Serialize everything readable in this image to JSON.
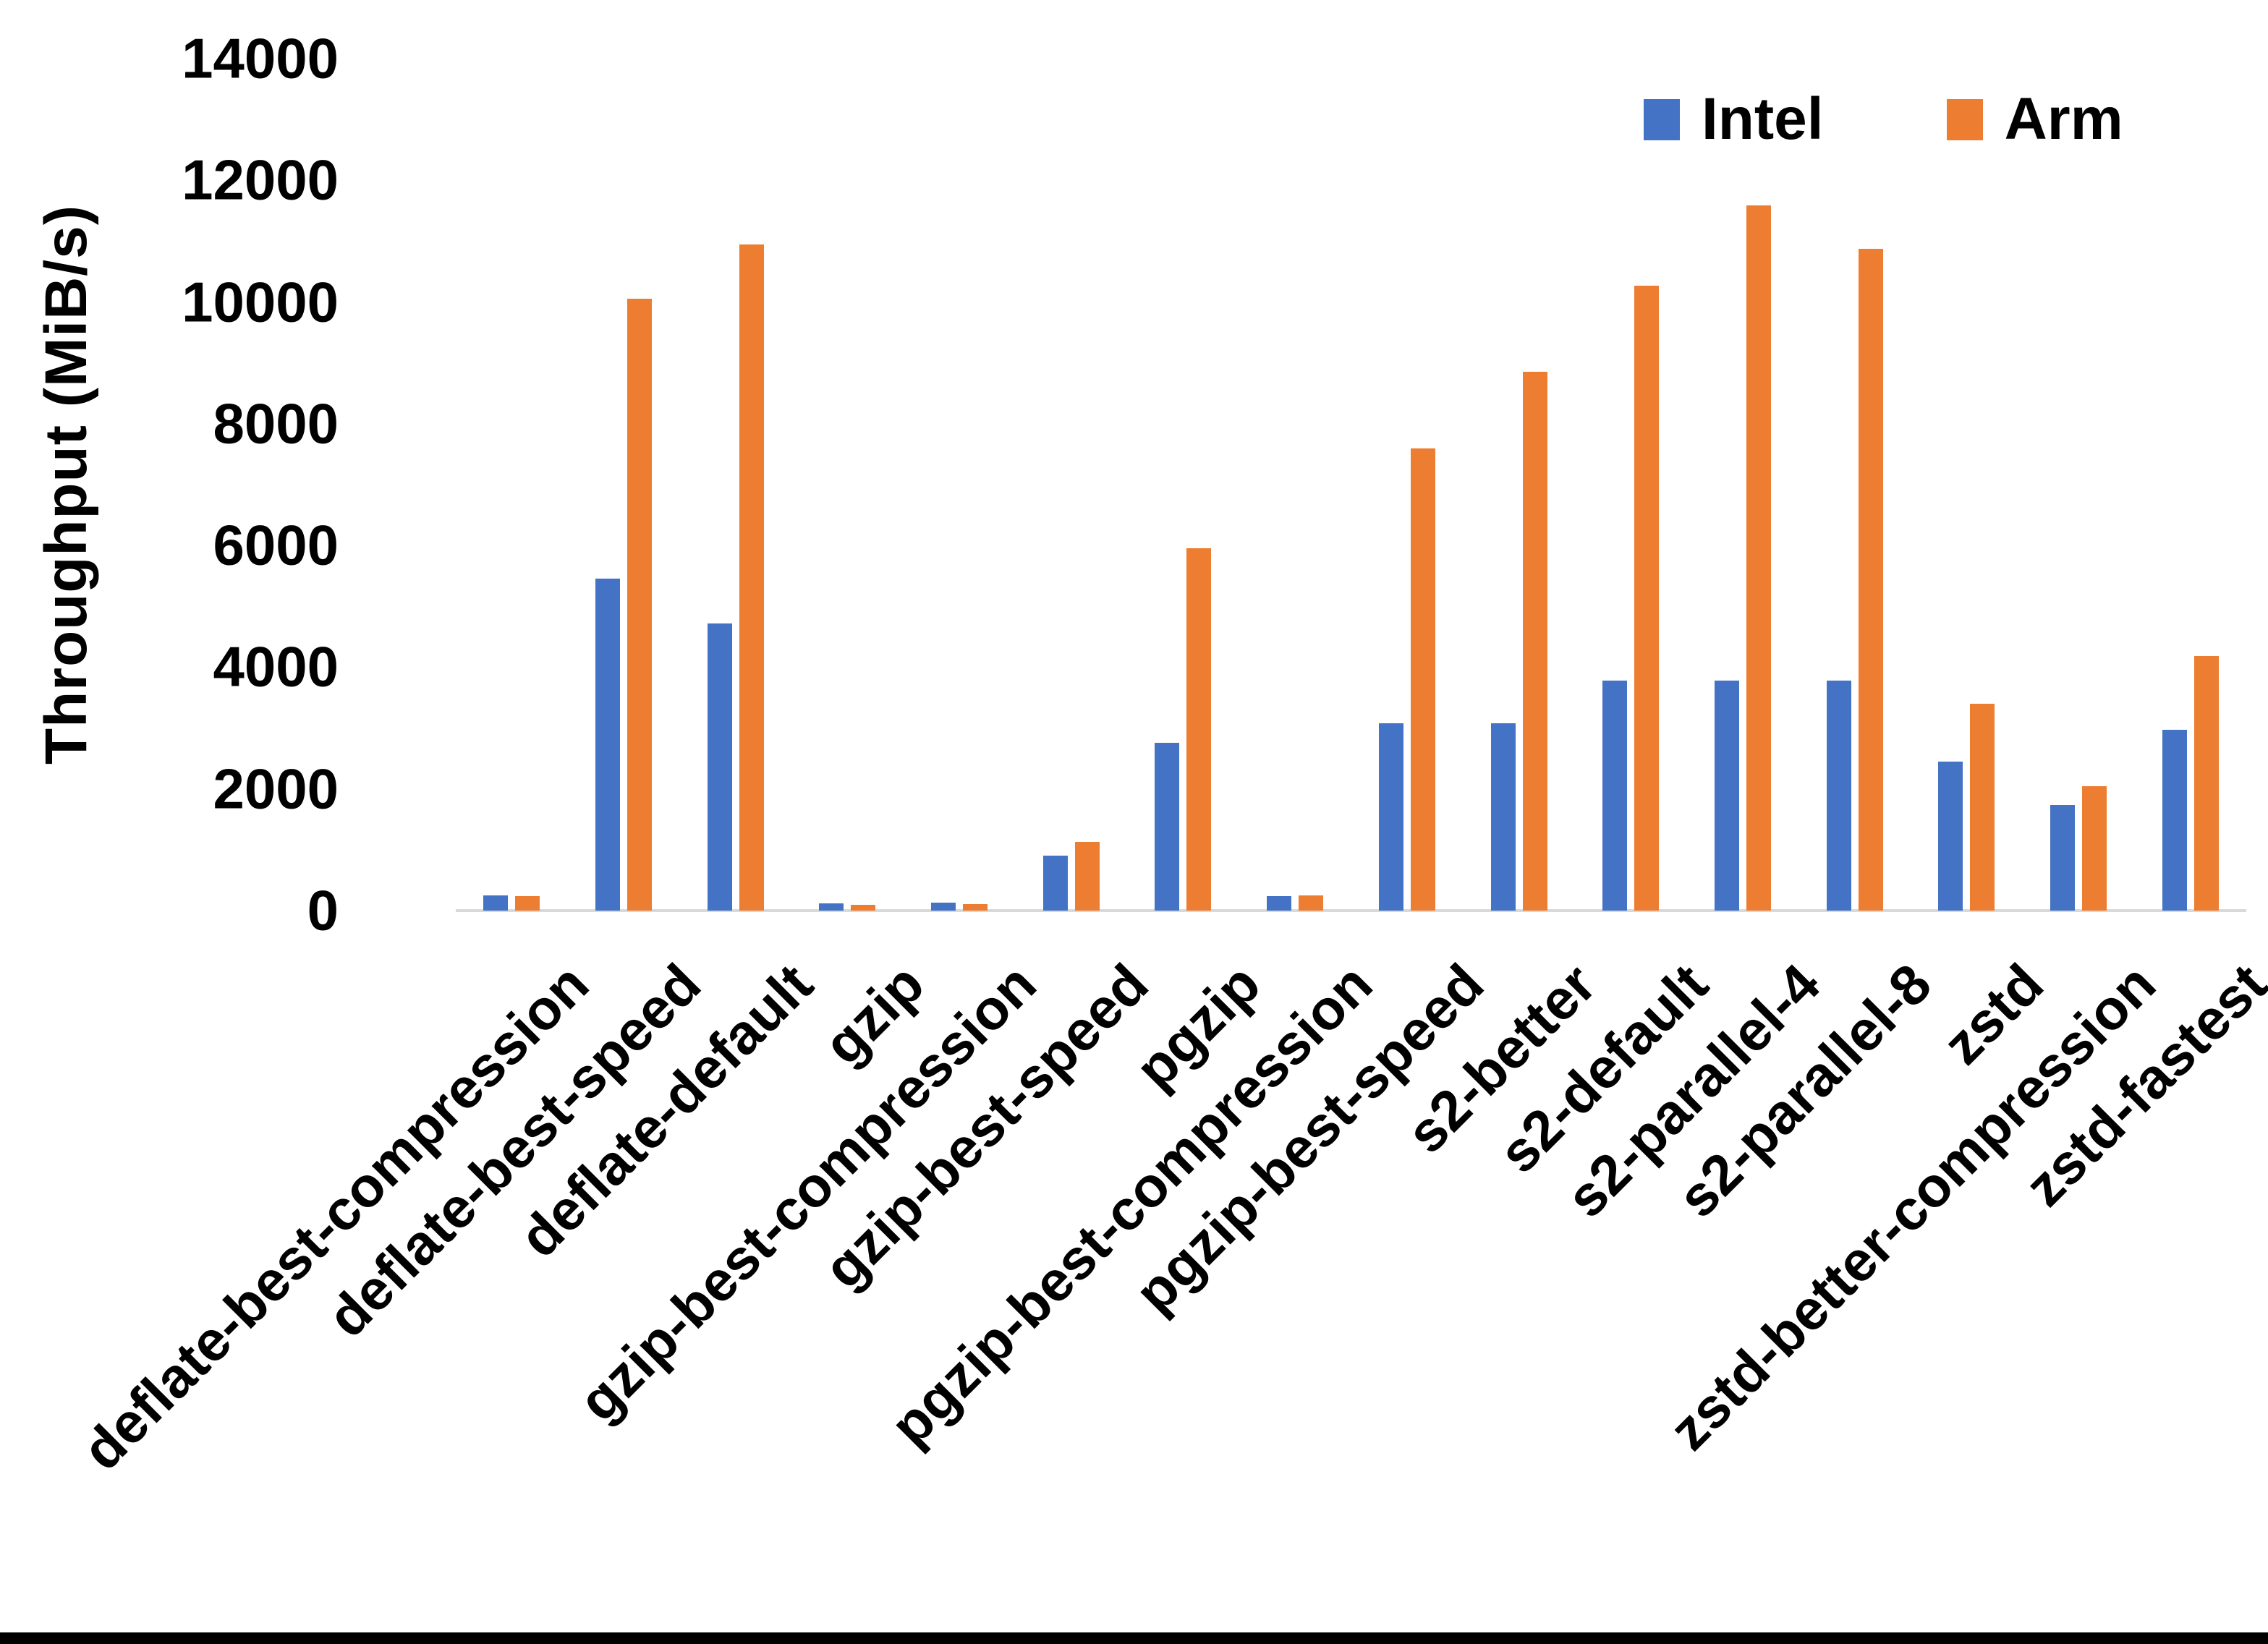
{
  "legend": {
    "intel": "Intel",
    "arm": "Arm"
  },
  "colors": {
    "intel": "#4472C4",
    "arm": "#ED7D31",
    "axis_line": "#D9D9D9",
    "text": "#000000",
    "bottom_bar": "#000000"
  },
  "y_axis": {
    "title": "Throughput (MiB/s)",
    "ticks": [
      "0",
      "2000",
      "4000",
      "6000",
      "8000",
      "10000",
      "12000",
      "14000"
    ]
  },
  "chart_data": {
    "type": "bar",
    "title": "",
    "xlabel": "",
    "ylabel": "Throughput (MiB/s)",
    "ylim": [
      0,
      14000
    ],
    "grid": false,
    "legend_position": "top-right",
    "categories": [
      "deflate-best-compression",
      "deflate-best-speed",
      "deflate-default",
      "gzip",
      "gzip-best-compression",
      "gzip-best-speed",
      "pgzip",
      "pgzip-best-compression",
      "pgzip-best-speed",
      "s2-better",
      "s2-default",
      "s2-parallel-4",
      "s2-parallel-8",
      "zstd",
      "zstd-better-compression",
      "zstd-fastest"
    ],
    "series": [
      {
        "name": "Intel",
        "values": [
          250,
          5450,
          4720,
          120,
          130,
          900,
          2760,
          240,
          3080,
          3080,
          3780,
          3780,
          3780,
          2450,
          1740,
          2970
        ]
      },
      {
        "name": "Arm",
        "values": [
          240,
          10050,
          10950,
          100,
          110,
          1130,
          5950,
          245,
          7600,
          8850,
          10270,
          11590,
          10870,
          3400,
          2050,
          4180
        ]
      }
    ]
  }
}
